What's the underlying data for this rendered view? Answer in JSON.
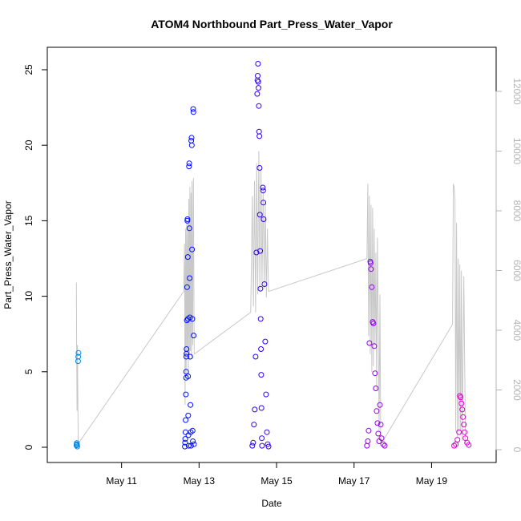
{
  "chart_data": {
    "type": "scatter",
    "title": "ATOM4 Northbound Part_Press_Water_Vapor",
    "xlabel": "Date",
    "ylabel": "Part_Press_Water_Vapor",
    "x_range_days": [
      "2016-05-09T02:00",
      "2016-05-20T16:00"
    ],
    "ylim": [
      0,
      25.6
    ],
    "y_ticks": [
      0,
      5,
      10,
      15,
      20,
      25
    ],
    "x_ticks": [
      "May 11",
      "May 13",
      "May 15",
      "May 17",
      "May 19"
    ],
    "y2lim": [
      0,
      12300
    ],
    "y2_ticks": [
      0,
      2000,
      4000,
      6000,
      8000,
      10000,
      12000
    ],
    "grid": false,
    "legend": "none",
    "point_style": "open circle",
    "color_scale": [
      "#00aadd",
      "#0000ff",
      "#ff00cc"
    ],
    "series": [
      {
        "style": "points",
        "points": [
          [
            "2016-05-09T20:05",
            0.12
          ],
          [
            "2016-05-09T20:10",
            0.2
          ],
          [
            "2016-05-09T20:15",
            0.28
          ],
          [
            "2016-05-09T20:25",
            0.15
          ],
          [
            "2016-05-09T20:35",
            0.05
          ],
          [
            "2016-05-09T21:05",
            5.7
          ],
          [
            "2016-05-09T21:10",
            6.0
          ],
          [
            "2016-05-09T21:20",
            6.25
          ],
          [
            "2016-05-12T15:10",
            0.05
          ],
          [
            "2016-05-12T15:20",
            0.3
          ],
          [
            "2016-05-12T15:25",
            0.55
          ],
          [
            "2016-05-12T15:35",
            1.0
          ],
          [
            "2016-05-12T15:40",
            1.8
          ],
          [
            "2016-05-12T15:50",
            3.5
          ],
          [
            "2016-05-12T15:55",
            4.6
          ],
          [
            "2016-05-12T16:00",
            5.0
          ],
          [
            "2016-05-12T16:05",
            6.0
          ],
          [
            "2016-05-12T16:10",
            6.2
          ],
          [
            "2016-05-12T16:15",
            6.5
          ],
          [
            "2016-05-12T16:25",
            8.4
          ],
          [
            "2016-05-12T16:35",
            10.6
          ],
          [
            "2016-05-12T16:45",
            15.0
          ],
          [
            "2016-05-12T16:50",
            15.1
          ],
          [
            "2016-05-12T17:00",
            12.6
          ],
          [
            "2016-05-12T17:05",
            8.5
          ],
          [
            "2016-05-12T17:10",
            4.7
          ],
          [
            "2016-05-12T17:15",
            2.1
          ],
          [
            "2016-05-12T17:25",
            0.8
          ],
          [
            "2016-05-12T17:35",
            0.1
          ],
          [
            "2016-05-12T17:45",
            18.6
          ],
          [
            "2016-05-12T17:55",
            18.8
          ],
          [
            "2016-05-12T18:00",
            14.5
          ],
          [
            "2016-05-12T18:10",
            11.2
          ],
          [
            "2016-05-12T18:20",
            8.6
          ],
          [
            "2016-05-12T18:30",
            6.0
          ],
          [
            "2016-05-12T18:40",
            2.8
          ],
          [
            "2016-05-12T18:50",
            1.0
          ],
          [
            "2016-05-12T19:00",
            0.1
          ],
          [
            "2016-05-12T19:10",
            20.3
          ],
          [
            "2016-05-12T19:20",
            20.5
          ],
          [
            "2016-05-12T19:30",
            20.0
          ],
          [
            "2016-05-12T19:40",
            13.1
          ],
          [
            "2016-05-12T19:50",
            8.5
          ],
          [
            "2016-05-12T20:00",
            1.1
          ],
          [
            "2016-05-12T20:10",
            0.4
          ],
          [
            "2016-05-12T20:20",
            22.4
          ],
          [
            "2016-05-12T20:30",
            22.2
          ],
          [
            "2016-05-12T20:40",
            7.4
          ],
          [
            "2016-05-12T20:50",
            0.2
          ],
          [
            "2016-05-14T09:00",
            0.1
          ],
          [
            "2016-05-14T09:30",
            0.3
          ],
          [
            "2016-05-14T10:00",
            1.5
          ],
          [
            "2016-05-14T10:30",
            2.5
          ],
          [
            "2016-05-14T11:00",
            6.0
          ],
          [
            "2016-05-14T11:30",
            12.9
          ],
          [
            "2016-05-14T12:00",
            23.4
          ],
          [
            "2016-05-14T12:10",
            24.3
          ],
          [
            "2016-05-14T12:20",
            24.6
          ],
          [
            "2016-05-14T12:30",
            25.4
          ],
          [
            "2016-05-14T12:40",
            24.2
          ],
          [
            "2016-05-14T12:50",
            23.8
          ],
          [
            "2016-05-14T13:00",
            22.6
          ],
          [
            "2016-05-14T13:10",
            20.9
          ],
          [
            "2016-05-14T13:20",
            20.6
          ],
          [
            "2016-05-14T13:30",
            18.5
          ],
          [
            "2016-05-14T13:40",
            15.4
          ],
          [
            "2016-05-14T13:50",
            13.0
          ],
          [
            "2016-05-14T14:00",
            10.5
          ],
          [
            "2016-05-14T14:10",
            8.5
          ],
          [
            "2016-05-14T14:20",
            6.5
          ],
          [
            "2016-05-14T14:30",
            4.8
          ],
          [
            "2016-05-14T14:40",
            2.6
          ],
          [
            "2016-05-14T14:50",
            0.6
          ],
          [
            "2016-05-14T15:00",
            0.1
          ],
          [
            "2016-05-14T15:30",
            17.2
          ],
          [
            "2016-05-14T15:40",
            17.0
          ],
          [
            "2016-05-14T15:50",
            16.2
          ],
          [
            "2016-05-14T16:00",
            15.1
          ],
          [
            "2016-05-14T16:30",
            10.8
          ],
          [
            "2016-05-14T17:00",
            7.0
          ],
          [
            "2016-05-14T17:30",
            3.5
          ],
          [
            "2016-05-14T18:00",
            1.0
          ],
          [
            "2016-05-14T18:30",
            0.2
          ],
          [
            "2016-05-14T19:00",
            0.05
          ],
          [
            "2016-05-17T08:00",
            0.1
          ],
          [
            "2016-05-17T08:30",
            0.4
          ],
          [
            "2016-05-17T09:00",
            1.1
          ],
          [
            "2016-05-17T09:30",
            6.9
          ],
          [
            "2016-05-17T10:00",
            12.3
          ],
          [
            "2016-05-17T10:15",
            12.2
          ],
          [
            "2016-05-17T10:30",
            11.8
          ],
          [
            "2016-05-17T11:00",
            10.6
          ],
          [
            "2016-05-17T11:30",
            8.3
          ],
          [
            "2016-05-17T12:00",
            8.2
          ],
          [
            "2016-05-17T12:30",
            6.7
          ],
          [
            "2016-05-17T13:00",
            4.9
          ],
          [
            "2016-05-17T13:30",
            3.9
          ],
          [
            "2016-05-17T14:00",
            2.4
          ],
          [
            "2016-05-17T14:30",
            1.6
          ],
          [
            "2016-05-17T15:00",
            0.9
          ],
          [
            "2016-05-17T15:30",
            0.4
          ],
          [
            "2016-05-17T16:00",
            2.8
          ],
          [
            "2016-05-17T16:30",
            1.5
          ],
          [
            "2016-05-17T17:00",
            0.6
          ],
          [
            "2016-05-17T18:00",
            0.2
          ],
          [
            "2016-05-17T19:00",
            0.1
          ],
          [
            "2016-05-19T14:00",
            0.1
          ],
          [
            "2016-05-19T15:00",
            0.2
          ],
          [
            "2016-05-19T16:00",
            0.5
          ],
          [
            "2016-05-19T17:00",
            1.0
          ],
          [
            "2016-05-19T17:30",
            3.4
          ],
          [
            "2016-05-19T18:00",
            3.3
          ],
          [
            "2016-05-19T18:30",
            2.9
          ],
          [
            "2016-05-19T19:00",
            2.5
          ],
          [
            "2016-05-19T19:30",
            2.0
          ],
          [
            "2016-05-19T20:00",
            1.5
          ],
          [
            "2016-05-19T20:30",
            1.0
          ],
          [
            "2016-05-19T21:00",
            0.6
          ],
          [
            "2016-05-19T22:00",
            0.3
          ],
          [
            "2016-05-19T23:00",
            0.15
          ]
        ]
      },
      {
        "style": "line",
        "axis": "right",
        "color": "#c8c8c8",
        "points": [
          [
            "2016-05-09T20:00",
            5600
          ],
          [
            "2016-05-09T20:10",
            3400
          ],
          [
            "2016-05-09T20:25",
            1300
          ],
          [
            "2016-05-09T20:40",
            3500
          ],
          [
            "2016-05-09T21:10",
            200
          ],
          [
            "2016-05-12T14:30",
            5300
          ],
          [
            "2016-05-12T15:00",
            6900
          ],
          [
            "2016-05-12T15:20",
            1500
          ],
          [
            "2016-05-12T15:40",
            7400
          ],
          [
            "2016-05-12T16:00",
            2500
          ],
          [
            "2016-05-12T16:20",
            7700
          ],
          [
            "2016-05-12T16:40",
            3200
          ],
          [
            "2016-05-12T17:00",
            7600
          ],
          [
            "2016-05-12T17:20",
            2400
          ],
          [
            "2016-05-12T17:40",
            8400
          ],
          [
            "2016-05-12T18:00",
            3000
          ],
          [
            "2016-05-12T18:20",
            8800
          ],
          [
            "2016-05-12T18:40",
            3300
          ],
          [
            "2016-05-12T19:00",
            8600
          ],
          [
            "2016-05-12T19:20",
            3100
          ],
          [
            "2016-05-12T19:40",
            9000
          ],
          [
            "2016-05-12T20:00",
            3500
          ],
          [
            "2016-05-12T20:30",
            9100
          ],
          [
            "2016-05-12T21:00",
            3200
          ],
          [
            "2016-05-14T08:00",
            4600
          ],
          [
            "2016-05-14T09:00",
            8500
          ],
          [
            "2016-05-14T09:40",
            4800
          ],
          [
            "2016-05-14T10:20",
            9000
          ],
          [
            "2016-05-14T11:00",
            4600
          ],
          [
            "2016-05-14T11:40",
            9600
          ],
          [
            "2016-05-14T12:20",
            5200
          ],
          [
            "2016-05-14T13:00",
            10000
          ],
          [
            "2016-05-14T13:40",
            5300
          ],
          [
            "2016-05-14T14:20",
            9400
          ],
          [
            "2016-05-14T15:00",
            5600
          ],
          [
            "2016-05-14T15:40",
            8700
          ],
          [
            "2016-05-14T16:20",
            5400
          ],
          [
            "2016-05-14T17:00",
            8300
          ],
          [
            "2016-05-14T17:40",
            5100
          ],
          [
            "2016-05-14T18:20",
            7400
          ],
          [
            "2016-05-14T19:00",
            5300
          ],
          [
            "2016-05-17T08:00",
            6400
          ],
          [
            "2016-05-17T08:30",
            8900
          ],
          [
            "2016-05-17T09:00",
            3800
          ],
          [
            "2016-05-17T09:30",
            8500
          ],
          [
            "2016-05-17T10:00",
            3200
          ],
          [
            "2016-05-17T10:30",
            8200
          ],
          [
            "2016-05-17T11:00",
            2600
          ],
          [
            "2016-05-17T11:30",
            8100
          ],
          [
            "2016-05-17T12:00",
            2800
          ],
          [
            "2016-05-17T12:30",
            7400
          ],
          [
            "2016-05-17T13:00",
            3500
          ],
          [
            "2016-05-17T13:30",
            6600
          ],
          [
            "2016-05-17T14:00",
            2000
          ],
          [
            "2016-05-17T14:30",
            7100
          ],
          [
            "2016-05-17T15:00",
            4500
          ],
          [
            "2016-05-17T15:30",
            600
          ],
          [
            "2016-05-17T16:00",
            5200
          ],
          [
            "2016-05-17T16:30",
            200
          ],
          [
            "2016-05-17T18:00",
            300
          ],
          [
            "2016-05-19T13:00",
            4200
          ],
          [
            "2016-05-19T13:30",
            8900
          ],
          [
            "2016-05-19T14:00",
            8800
          ],
          [
            "2016-05-19T14:30",
            8400
          ],
          [
            "2016-05-19T15:00",
            600
          ],
          [
            "2016-05-19T15:30",
            7600
          ],
          [
            "2016-05-19T16:00",
            400
          ],
          [
            "2016-05-19T16:30",
            6400
          ],
          [
            "2016-05-19T17:00",
            600
          ],
          [
            "2016-05-19T17:30",
            6200
          ],
          [
            "2016-05-19T18:00",
            500
          ],
          [
            "2016-05-19T18:30",
            6000
          ],
          [
            "2016-05-19T19:00",
            300
          ],
          [
            "2016-05-19T20:00",
            5800
          ],
          [
            "2016-05-19T21:00",
            200
          ]
        ]
      }
    ]
  }
}
